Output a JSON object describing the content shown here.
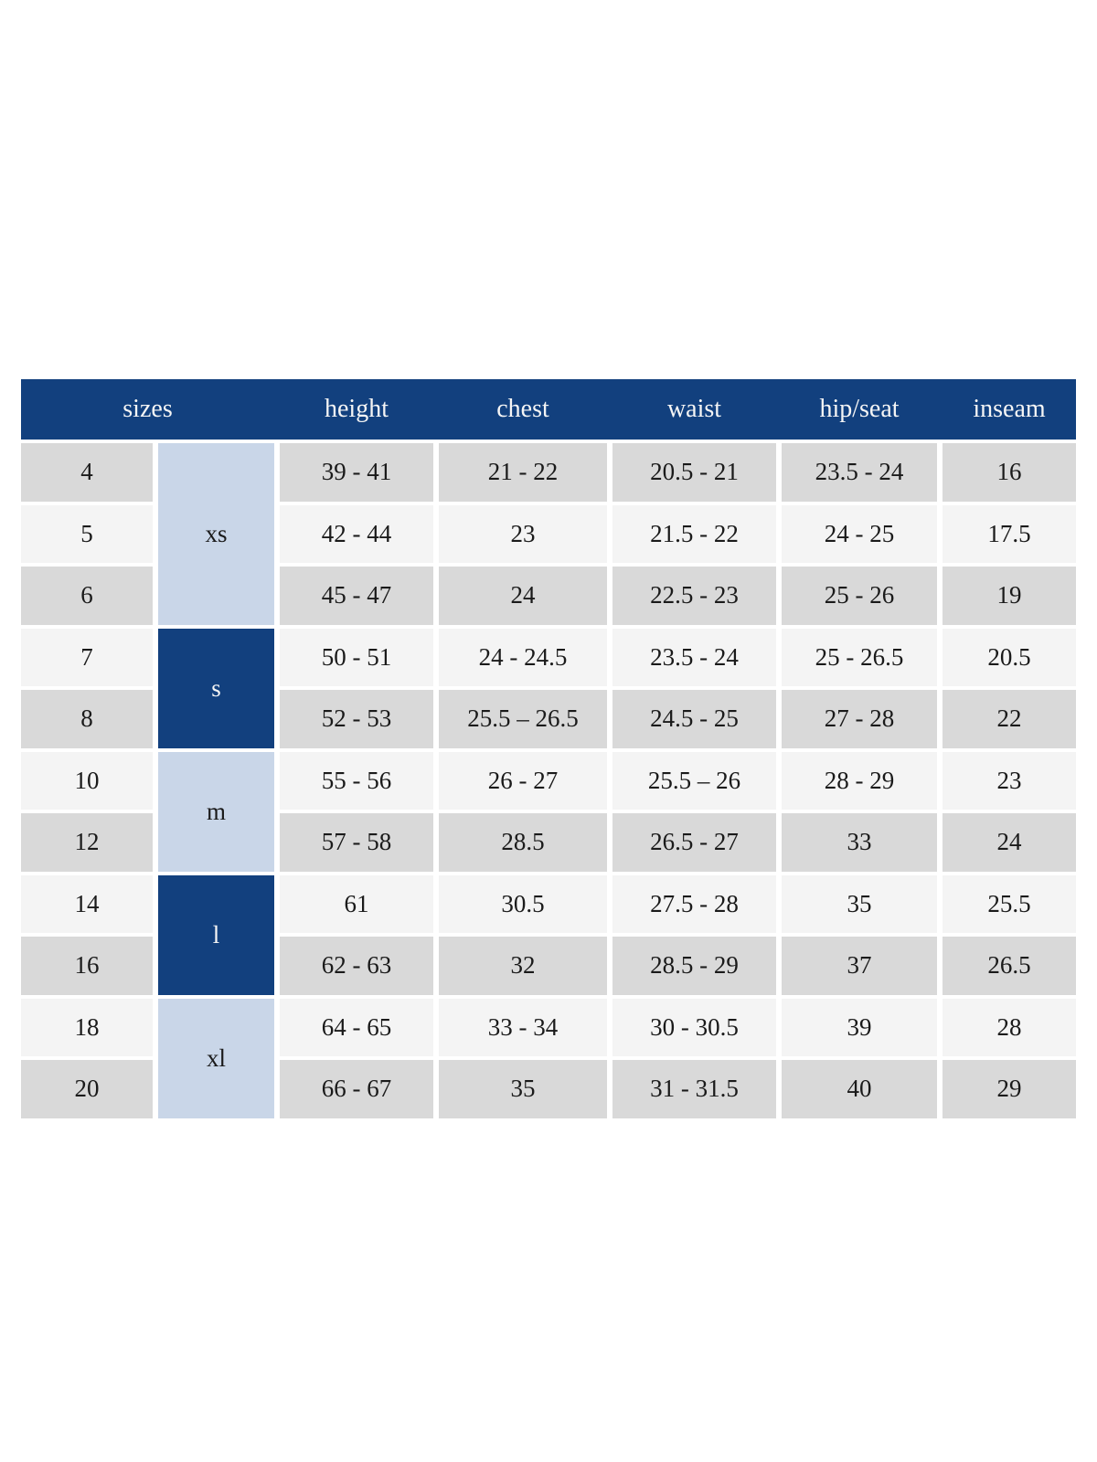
{
  "colors": {
    "page_bg": "#ffffff",
    "header_bg": "#12407e",
    "header_text": "#f5f5f5",
    "body_text": "#1a1a1a",
    "row_gray": "#d9d9d9",
    "row_light": "#f4f4f4",
    "group_light": "#c9d6e8",
    "group_dark": "#12407e"
  },
  "chart_data": {
    "type": "table",
    "columns": [
      "sizes",
      "height",
      "chest",
      "waist",
      "hip/seat",
      "inseam"
    ],
    "size_groups": [
      {
        "label": "xs",
        "rows": [
          0,
          1,
          2
        ],
        "variant": "light"
      },
      {
        "label": "s",
        "rows": [
          3,
          4
        ],
        "variant": "dark"
      },
      {
        "label": "m",
        "rows": [
          5,
          6
        ],
        "variant": "light"
      },
      {
        "label": "l",
        "rows": [
          7,
          8
        ],
        "variant": "dark"
      },
      {
        "label": "xl",
        "rows": [
          9,
          10
        ],
        "variant": "light"
      }
    ],
    "rows": [
      {
        "size": "4",
        "height": "39 - 41",
        "chest": "21 - 22",
        "waist": "20.5 - 21",
        "hip_seat": "23.5 - 24",
        "inseam": "16"
      },
      {
        "size": "5",
        "height": "42 - 44",
        "chest": "23",
        "waist": "21.5 - 22",
        "hip_seat": "24 - 25",
        "inseam": "17.5"
      },
      {
        "size": "6",
        "height": "45 - 47",
        "chest": "24",
        "waist": "22.5 - 23",
        "hip_seat": "25 - 26",
        "inseam": "19"
      },
      {
        "size": "7",
        "height": "50 - 51",
        "chest": "24 - 24.5",
        "waist": "23.5 - 24",
        "hip_seat": "25 - 26.5",
        "inseam": "20.5"
      },
      {
        "size": "8",
        "height": "52 - 53",
        "chest": "25.5 – 26.5",
        "waist": "24.5 - 25",
        "hip_seat": "27 - 28",
        "inseam": "22"
      },
      {
        "size": "10",
        "height": "55 - 56",
        "chest": "26 - 27",
        "waist": "25.5 – 26",
        "hip_seat": "28 - 29",
        "inseam": "23"
      },
      {
        "size": "12",
        "height": "57 - 58",
        "chest": "28.5",
        "waist": "26.5 - 27",
        "hip_seat": "33",
        "inseam": "24"
      },
      {
        "size": "14",
        "height": "61",
        "chest": "30.5",
        "waist": "27.5 - 28",
        "hip_seat": "35",
        "inseam": "25.5"
      },
      {
        "size": "16",
        "height": "62 - 63",
        "chest": "32",
        "waist": "28.5 - 29",
        "hip_seat": "37",
        "inseam": "26.5"
      },
      {
        "size": "18",
        "height": "64 - 65",
        "chest": "33 - 34",
        "waist": "30 - 30.5",
        "hip_seat": "39",
        "inseam": "28"
      },
      {
        "size": "20",
        "height": "66 - 67",
        "chest": "35",
        "waist": "31 - 31.5",
        "hip_seat": "40",
        "inseam": "29"
      }
    ]
  }
}
